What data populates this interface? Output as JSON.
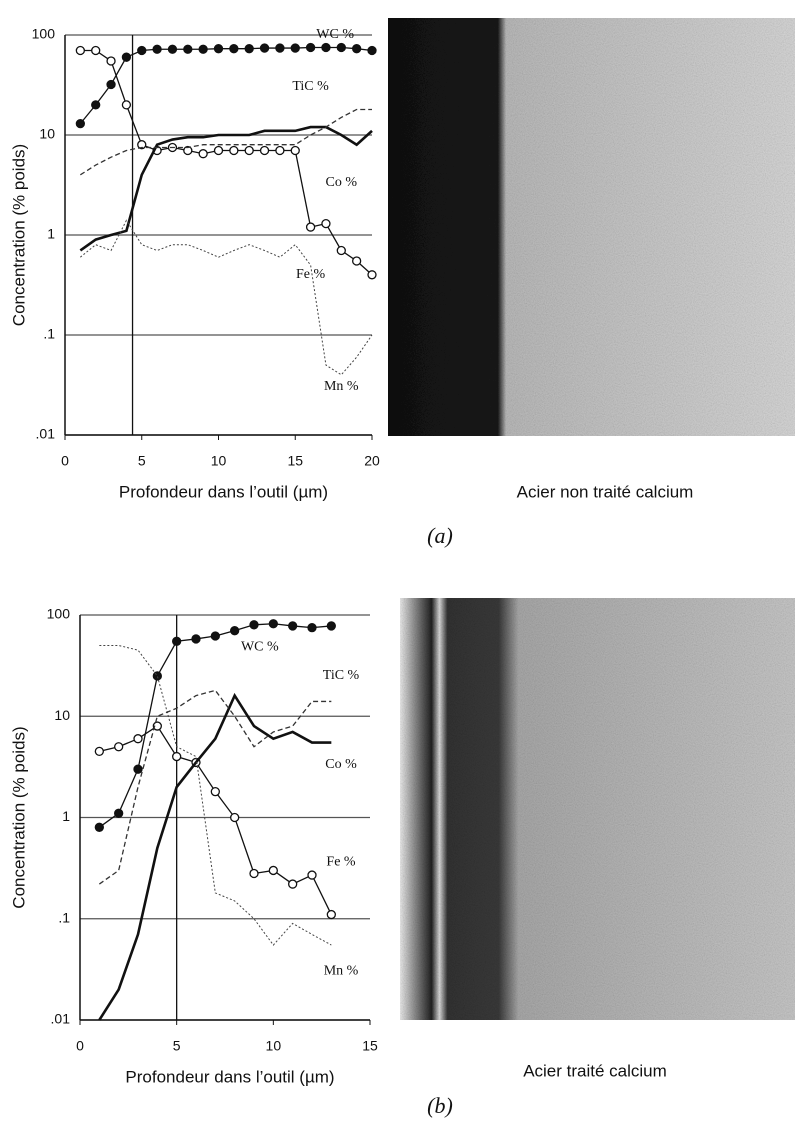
{
  "chart_data": [
    {
      "type": "line",
      "log_y": true,
      "grid": true,
      "y_label": "Concentration (% poids)",
      "x_label": "Profondeur dans l’outil (µm)",
      "xlim": [
        0,
        20
      ],
      "xticks": [
        0,
        5,
        10,
        15,
        20
      ],
      "ylim": [
        0.01,
        100
      ],
      "yticks": [
        {
          "value": 0.01,
          "label": ".01"
        },
        {
          "value": 0.1,
          "label": ".1"
        },
        1,
        10,
        100
      ],
      "vline": 4.4,
      "x": [
        1,
        2,
        3,
        4,
        5,
        6,
        7,
        8,
        9,
        10,
        11,
        12,
        13,
        14,
        15,
        16,
        17,
        18,
        19,
        20
      ],
      "series": [
        {
          "name": "WC %",
          "color": "#111111",
          "marker": "filled",
          "dash": "none",
          "values": [
            13,
            20,
            32,
            60,
            70,
            72,
            72,
            72,
            72,
            73,
            73,
            73,
            74,
            74,
            74,
            75,
            75,
            75,
            73,
            70
          ]
        },
        {
          "name": "TiC %",
          "color": "#111111",
          "marker": "open",
          "dash": "none",
          "values": [
            70,
            70,
            55,
            20,
            8,
            7,
            7.5,
            7,
            6.5,
            7,
            7,
            7,
            7,
            7,
            7,
            1.2,
            1.3,
            0.7,
            0.55,
            0.4
          ]
        },
        {
          "name": "Co %",
          "color": "#111111",
          "marker": "none",
          "dash": "thick",
          "values": [
            0.7,
            0.9,
            1.0,
            1.1,
            4,
            8,
            9,
            9.5,
            9.5,
            10,
            10,
            10,
            11,
            11,
            11,
            12,
            12,
            10,
            8,
            11
          ]
        },
        {
          "name": "Fe %",
          "color": "#444444",
          "marker": "none",
          "dash": "dotted",
          "values": [
            0.6,
            0.8,
            0.7,
            1.4,
            0.8,
            0.7,
            0.8,
            0.8,
            0.7,
            0.6,
            0.7,
            0.8,
            0.7,
            0.6,
            0.8,
            0.5,
            0.05,
            0.04,
            0.06,
            0.1
          ]
        },
        {
          "name": "Mn %",
          "color": "#333333",
          "marker": "none",
          "dash": "dashed",
          "values": [
            4,
            5,
            6,
            7,
            7.5,
            7.5,
            7.5,
            7.5,
            8,
            8,
            8,
            8,
            8,
            8,
            8,
            10,
            12,
            15,
            18,
            18
          ]
        }
      ]
    },
    {
      "type": "line",
      "log_y": true,
      "grid": true,
      "y_label": "Concentration (% poids)",
      "x_label": "Profondeur dans l’outil (µm)",
      "xlim": [
        0,
        15
      ],
      "xticks": [
        0,
        5,
        10,
        15
      ],
      "ylim": [
        0.01,
        100
      ],
      "yticks": [
        {
          "value": 0.01,
          "label": ".01"
        },
        {
          "value": 0.1,
          "label": ".1"
        },
        1,
        10,
        100
      ],
      "vline": 5,
      "x": [
        1,
        2,
        3,
        4,
        5,
        6,
        7,
        8,
        9,
        10,
        11,
        12,
        13
      ],
      "series": [
        {
          "name": "WC %",
          "color": "#111111",
          "marker": "filled",
          "dash": "none",
          "values": [
            0.8,
            1.1,
            3,
            25,
            55,
            58,
            62,
            70,
            80,
            82,
            78,
            75,
            78
          ]
        },
        {
          "name": "TiC %",
          "color": "#111111",
          "marker": "open",
          "dash": "none",
          "values": [
            4.5,
            5,
            6,
            8,
            4,
            3.5,
            1.8,
            1,
            0.28,
            0.3,
            0.22,
            0.27,
            0.11
          ]
        },
        {
          "name": "Co %",
          "color": "#111111",
          "marker": "none",
          "dash": "thick",
          "values": [
            0.01,
            0.02,
            0.07,
            0.5,
            2,
            3.5,
            6,
            16,
            8,
            6,
            7,
            5.5,
            5.5
          ]
        },
        {
          "name": "Fe %",
          "color": "#444444",
          "marker": "none",
          "dash": "dotted",
          "values": [
            50,
            50,
            45,
            25,
            5,
            4,
            0.18,
            0.15,
            0.1,
            0.055,
            0.09,
            0.07,
            0.055
          ]
        },
        {
          "name": "Mn %",
          "color": "#333333",
          "marker": "none",
          "dash": "dashed",
          "values": [
            0.22,
            0.3,
            2,
            10,
            12,
            16,
            18,
            10,
            5,
            7,
            8,
            14,
            14
          ]
        }
      ]
    }
  ],
  "figures": [
    {
      "image_label": "Acier non traité calcium",
      "caption": "(a)"
    },
    {
      "image_label": "Acier traité calcium",
      "caption": "(b)"
    }
  ]
}
